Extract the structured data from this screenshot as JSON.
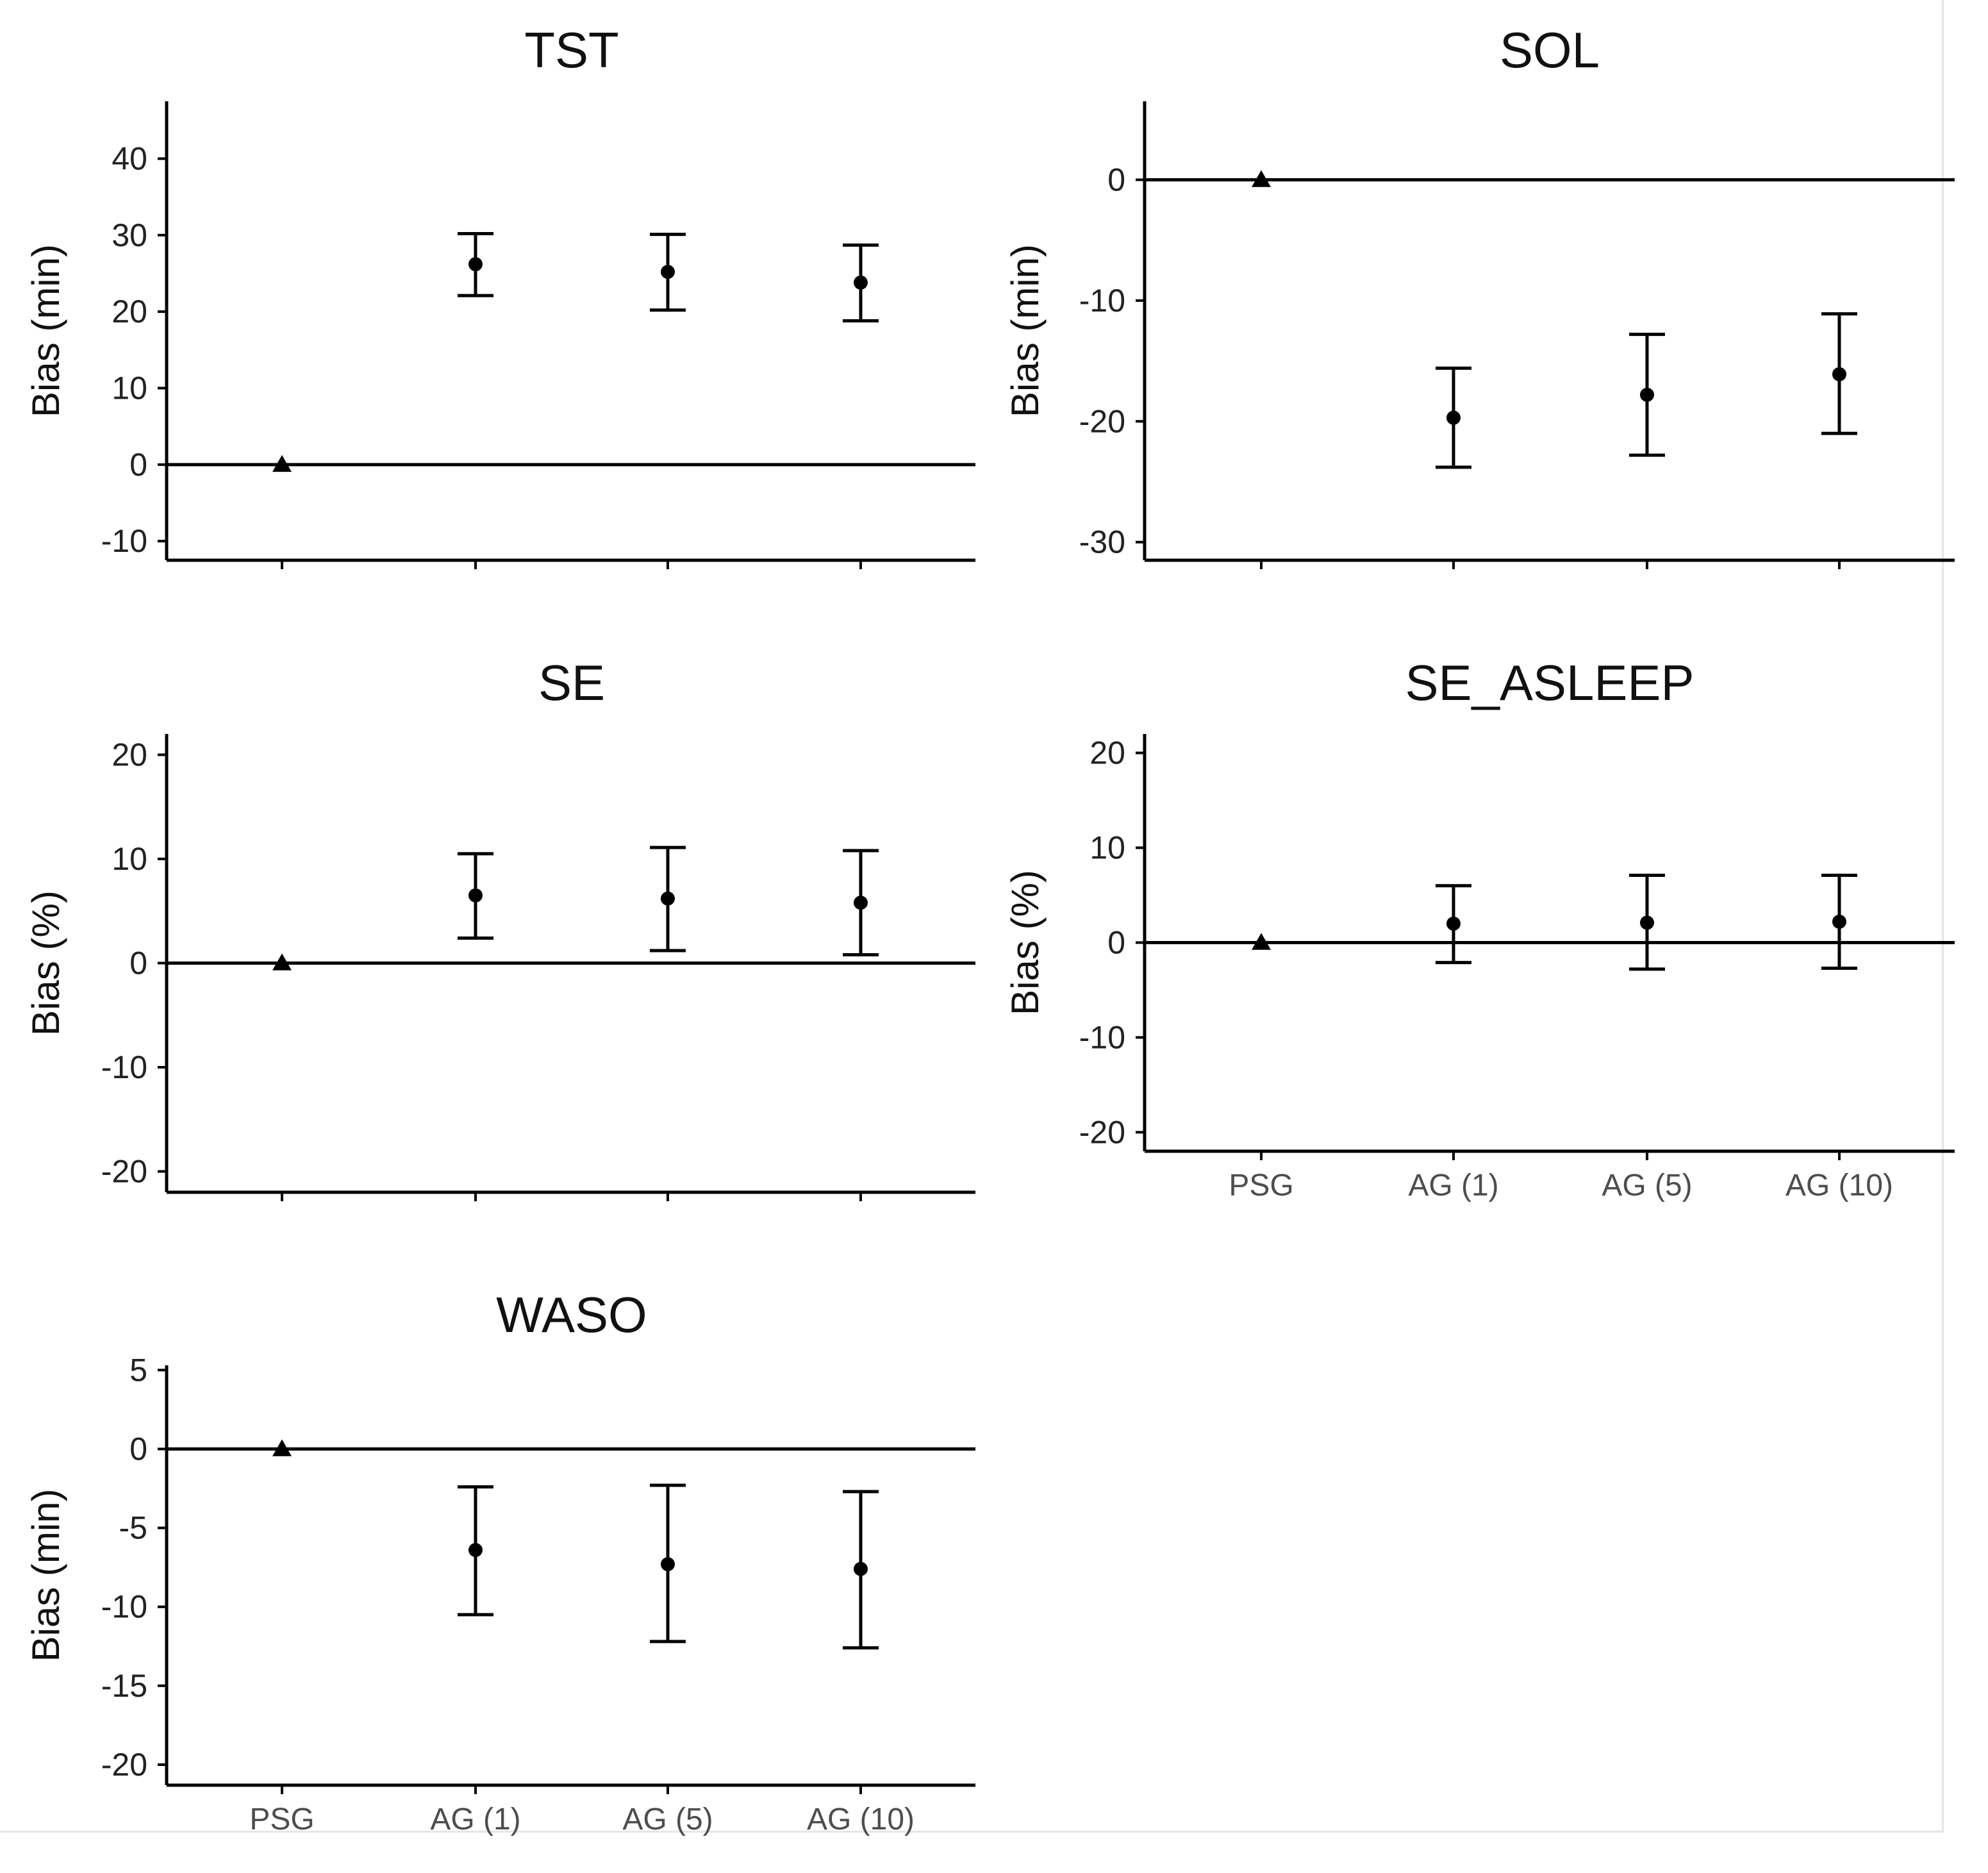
{
  "chart_data": [
    {
      "type": "errorbar",
      "title": "TST",
      "ylabel": "Bias (min)",
      "xlabel": "",
      "categories": [
        "PSG",
        "AG (1)",
        "AG (5)",
        "AG (10)"
      ],
      "show_x_labels": false,
      "ylim": [
        -12.5,
        47.5
      ],
      "yticks": [
        -10,
        0,
        10,
        20,
        30,
        40
      ],
      "reference_line": 0,
      "points": [
        {
          "category": "PSG",
          "value": 0,
          "low": null,
          "high": null,
          "marker": "triangle"
        },
        {
          "category": "AG (1)",
          "value": 26.2,
          "low": 22.1,
          "high": 30.2,
          "marker": "circle"
        },
        {
          "category": "AG (5)",
          "value": 25.2,
          "low": 20.2,
          "high": 30.1,
          "marker": "circle"
        },
        {
          "category": "AG (10)",
          "value": 23.8,
          "low": 18.8,
          "high": 28.7,
          "marker": "circle"
        }
      ]
    },
    {
      "type": "errorbar",
      "title": "SOL",
      "ylabel": "Bias (min)",
      "xlabel": "",
      "categories": [
        "PSG",
        "AG (1)",
        "AG (5)",
        "AG (10)"
      ],
      "show_x_labels": false,
      "ylim": [
        -31.5,
        6.5
      ],
      "yticks": [
        -30,
        -20,
        -10,
        0
      ],
      "reference_line": 0,
      "points": [
        {
          "category": "PSG",
          "value": 0,
          "low": null,
          "high": null,
          "marker": "triangle"
        },
        {
          "category": "AG (1)",
          "value": -19.7,
          "low": -23.8,
          "high": -15.6,
          "marker": "circle"
        },
        {
          "category": "AG (5)",
          "value": -17.8,
          "low": -22.8,
          "high": -12.8,
          "marker": "circle"
        },
        {
          "category": "AG (10)",
          "value": -16.1,
          "low": -21.0,
          "high": -11.1,
          "marker": "circle"
        }
      ]
    },
    {
      "type": "errorbar",
      "title": "SE",
      "ylabel": "Bias (%)",
      "xlabel": "",
      "categories": [
        "PSG",
        "AG (1)",
        "AG (5)",
        "AG (10)"
      ],
      "show_x_labels": false,
      "ylim": [
        -22,
        22
      ],
      "yticks": [
        -20,
        -10,
        0,
        10,
        20
      ],
      "reference_line": 0,
      "points": [
        {
          "category": "PSG",
          "value": 0,
          "low": null,
          "high": null,
          "marker": "triangle"
        },
        {
          "category": "AG (1)",
          "value": 6.5,
          "low": 2.4,
          "high": 10.5,
          "marker": "circle"
        },
        {
          "category": "AG (5)",
          "value": 6.2,
          "low": 1.2,
          "high": 11.1,
          "marker": "circle"
        },
        {
          "category": "AG (10)",
          "value": 5.8,
          "low": 0.8,
          "high": 10.8,
          "marker": "circle"
        }
      ]
    },
    {
      "type": "errorbar",
      "title": "SE_ASLEEP",
      "ylabel": "Bias (%)",
      "xlabel": "",
      "categories": [
        "PSG",
        "AG (1)",
        "AG (5)",
        "AG (10)"
      ],
      "show_x_labels": true,
      "ylim": [
        -22,
        22
      ],
      "yticks": [
        -20,
        -10,
        0,
        10,
        20
      ],
      "reference_line": 0,
      "points": [
        {
          "category": "PSG",
          "value": 0,
          "low": null,
          "high": null,
          "marker": "triangle"
        },
        {
          "category": "AG (1)",
          "value": 2.0,
          "low": -2.1,
          "high": 6.0,
          "marker": "circle"
        },
        {
          "category": "AG (5)",
          "value": 2.1,
          "low": -2.8,
          "high": 7.1,
          "marker": "circle"
        },
        {
          "category": "AG (10)",
          "value": 2.2,
          "low": -2.7,
          "high": 7.1,
          "marker": "circle"
        }
      ]
    },
    {
      "type": "errorbar",
      "title": "WASO",
      "ylabel": "Bias (min)",
      "xlabel": "",
      "categories": [
        "PSG",
        "AG (1)",
        "AG (5)",
        "AG (10)"
      ],
      "show_x_labels": true,
      "ylim": [
        -21.3,
        5.3
      ],
      "yticks": [
        -20,
        -15,
        -10,
        -5,
        0,
        5
      ],
      "reference_line": 0,
      "points": [
        {
          "category": "PSG",
          "value": 0,
          "low": null,
          "high": null,
          "marker": "triangle"
        },
        {
          "category": "AG (1)",
          "value": -6.4,
          "low": -10.5,
          "high": -2.4,
          "marker": "circle"
        },
        {
          "category": "AG (5)",
          "value": -7.3,
          "low": -12.2,
          "high": -2.3,
          "marker": "circle"
        },
        {
          "category": "AG (10)",
          "value": -7.6,
          "low": -12.6,
          "high": -2.7,
          "marker": "circle"
        }
      ]
    }
  ]
}
